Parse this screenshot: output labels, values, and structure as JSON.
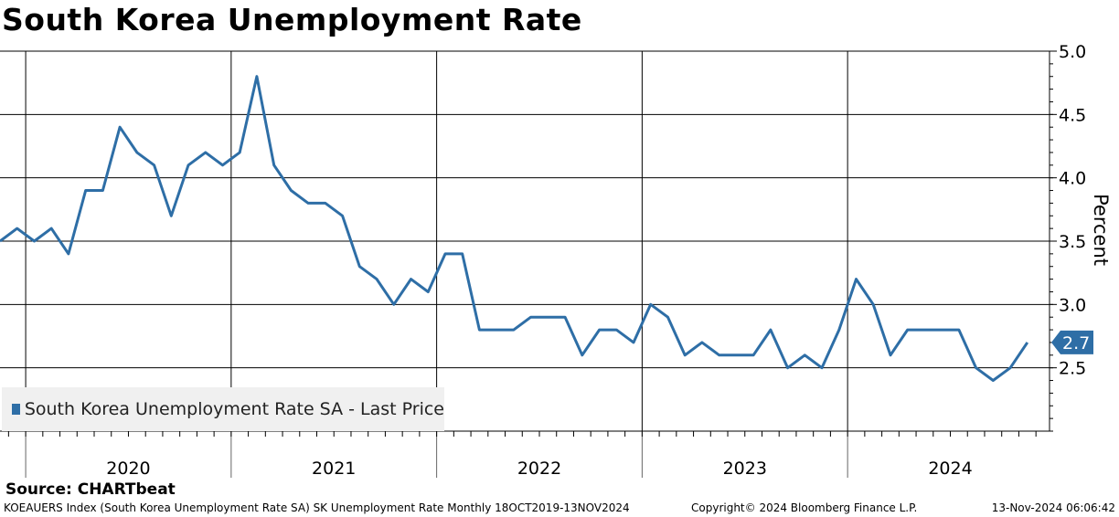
{
  "chart_data": {
    "type": "line",
    "title": "South Korea Unemployment Rate",
    "ylabel": "Percent",
    "ylim": [
      2.0,
      5.0
    ],
    "yticks": [
      "5.0",
      "4.5",
      "4.0",
      "3.5",
      "3.0",
      "2.5"
    ],
    "year_labels": [
      "2020",
      "2021",
      "2022",
      "2023",
      "2024"
    ],
    "series": [
      {
        "name": "South Korea Unemployment Rate SA - Last Price",
        "color": "#2e6ea6",
        "start": "2019-10",
        "frequency": "monthly",
        "values": [
          3.5,
          3.6,
          3.5,
          3.6,
          3.4,
          3.9,
          3.9,
          4.4,
          4.2,
          4.1,
          3.7,
          4.1,
          4.2,
          4.1,
          4.2,
          4.8,
          4.1,
          3.9,
          3.8,
          3.8,
          3.7,
          3.3,
          3.2,
          3.0,
          3.2,
          3.1,
          3.4,
          3.4,
          2.8,
          2.8,
          2.8,
          2.9,
          2.9,
          2.9,
          2.6,
          2.8,
          2.8,
          2.7,
          3.0,
          2.9,
          2.6,
          2.7,
          2.6,
          2.6,
          2.6,
          2.8,
          2.5,
          2.6,
          2.5,
          2.8,
          3.2,
          3.0,
          2.6,
          2.8,
          2.8,
          2.8,
          2.8,
          2.5,
          2.4,
          2.5,
          2.7
        ]
      }
    ],
    "last_value_label": "2.7",
    "grid": true,
    "legend_position": "bottom-left"
  },
  "source": "Source:  CHARTbeat",
  "footer": {
    "left": "KOEAUERS Index (South Korea Unemployment Rate SA) SK Unemployment Rate  Monthly 18OCT2019-13NOV2024",
    "middle": "Copyright© 2024 Bloomberg Finance L.P.",
    "right": "13-Nov-2024 06:06:42"
  }
}
